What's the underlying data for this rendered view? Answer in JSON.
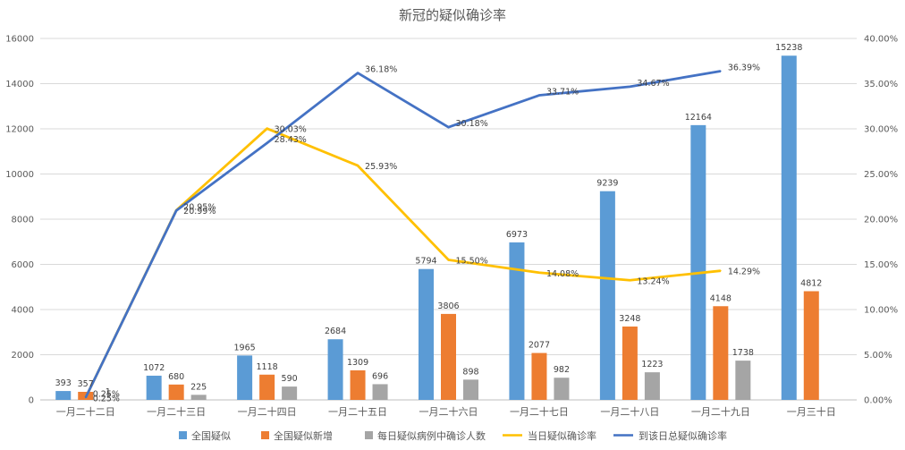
{
  "chart_data": {
    "type": "bar+line",
    "title": "新冠的疑似确诊率",
    "categories": [
      "一月二十二日",
      "一月二十三日",
      "一月二十四日",
      "一月二十五日",
      "一月二十六日",
      "一月二十七日",
      "一月二十八日",
      "一月二十九日",
      "一月三十日"
    ],
    "y_left": {
      "min": 0,
      "max": 16000,
      "ticks": [
        "0",
        "2000",
        "4000",
        "6000",
        "8000",
        "10000",
        "12000",
        "14000",
        "16000"
      ]
    },
    "y_right": {
      "min": 0,
      "max": 40,
      "ticks": [
        "0.00%",
        "5.00%",
        "10.00%",
        "15.00%",
        "20.00%",
        "25.00%",
        "30.00%",
        "35.00%",
        "40.00%"
      ]
    },
    "bar_series": [
      {
        "name": "全国疑似",
        "color": "#5B9BD5",
        "values": [
          393,
          1072,
          1965,
          2684,
          5794,
          6973,
          9239,
          12164,
          15238
        ],
        "labels": [
          "393",
          "1072",
          "1965",
          "2684",
          "5794",
          "6973",
          "9239",
          "12164",
          "15238"
        ]
      },
      {
        "name": "全国疑似新增",
        "color": "#ED7D31",
        "values": [
          357,
          680,
          1118,
          1309,
          3806,
          2077,
          3248,
          4148,
          4812
        ],
        "labels": [
          "357",
          "680",
          "1118",
          "1309",
          "3806",
          "2077",
          "3248",
          "4148",
          "4812"
        ]
      },
      {
        "name": "每日疑似病例中确诊人数",
        "color": "#A5A5A5",
        "values": [
          1,
          225,
          590,
          696,
          898,
          982,
          1223,
          1738,
          null
        ],
        "labels": [
          "1",
          "225",
          "590",
          "696",
          "898",
          "982",
          "1223",
          "1738",
          null
        ]
      }
    ],
    "line_series": [
      {
        "name": "当日疑似确诊率",
        "color": "#FFC000",
        "values": [
          0.25,
          20.99,
          30.03,
          25.93,
          15.5,
          14.08,
          13.24,
          14.29,
          null
        ],
        "labels": [
          "0.25%",
          "20.99%",
          "30.03%",
          "25.93%",
          "15.50%",
          "14.08%",
          "13.24%",
          "14.29%",
          null
        ]
      },
      {
        "name": "到该日总疑似确诊率",
        "color": "#4472C4",
        "values": [
          0.25,
          20.95,
          28.43,
          36.18,
          30.18,
          33.71,
          34.67,
          36.39,
          null
        ],
        "labels": [
          "0.25%",
          "20.95%",
          "28.43%",
          "36.18%",
          "30.18%",
          "33.71%",
          "34.67%",
          "36.39%",
          null
        ]
      }
    ],
    "legend": [
      "全国疑似",
      "全国疑似新增",
      "每日疑似病例中确诊人数",
      "当日疑似确诊率",
      "到该日总疑似确诊率"
    ],
    "legend_position": "bottom",
    "grid": true
  }
}
